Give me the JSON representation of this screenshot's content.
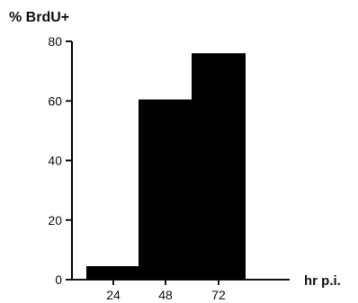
{
  "chart_data": {
    "type": "bar",
    "title": "",
    "ylabel": "% BrdU+",
    "xlabel": "hr  p.i.",
    "categories": [
      "24",
      "48",
      "72"
    ],
    "values": [
      4.5,
      60.5,
      76
    ],
    "ylim": [
      0,
      80
    ],
    "yticks": [
      0,
      20,
      40,
      60,
      80
    ],
    "grid": false,
    "bar_color": "#000000",
    "axis_color": "#111111"
  }
}
